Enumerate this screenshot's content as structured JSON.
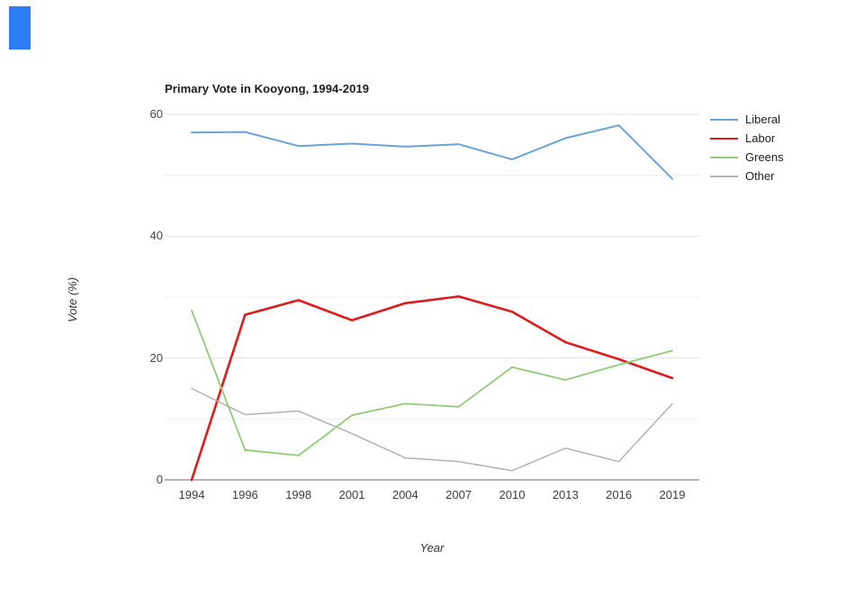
{
  "page": {
    "background": "#ffffff",
    "selection_marker_color": "#2e7cf5"
  },
  "chart_data": {
    "type": "line",
    "title": "Primary Vote in Kooyong, 1994-2019",
    "xlabel": "Year",
    "ylabel": "Vote (%)",
    "categories": [
      "1994",
      "1996",
      "1998",
      "2001",
      "2004",
      "2007",
      "2010",
      "2013",
      "2016",
      "2019"
    ],
    "series": [
      {
        "name": "Liberal",
        "color": "#69a3d9",
        "width": 2,
        "values": [
          57.0,
          57.1,
          54.8,
          55.2,
          54.7,
          55.1,
          52.6,
          56.1,
          58.2,
          49.4
        ]
      },
      {
        "name": "Labor",
        "color": "#e01b1b",
        "width": 2.6,
        "values": [
          0.0,
          27.1,
          29.5,
          26.2,
          29.0,
          30.1,
          27.6,
          22.6,
          19.8,
          16.7
        ]
      },
      {
        "name": "Greens",
        "color": "#90cb76",
        "width": 1.8,
        "values": [
          27.8,
          4.9,
          4.0,
          10.6,
          12.5,
          12.0,
          18.5,
          16.4,
          18.9,
          21.2
        ]
      },
      {
        "name": "Other",
        "color": "#b3b3b3",
        "width": 1.5,
        "values": [
          15.0,
          10.7,
          11.3,
          7.6,
          3.6,
          3.0,
          1.5,
          5.2,
          3.0,
          12.5
        ]
      }
    ],
    "ylim": [
      0,
      60
    ],
    "y_ticks_labeled": [
      0,
      20,
      40,
      60
    ],
    "y_grid_step": 10,
    "grid": true,
    "legend_position": "right",
    "grid_color_major": "#e3e3e3",
    "grid_color_minor": "#efefef",
    "axis_line_color": "#6b6b6b"
  }
}
